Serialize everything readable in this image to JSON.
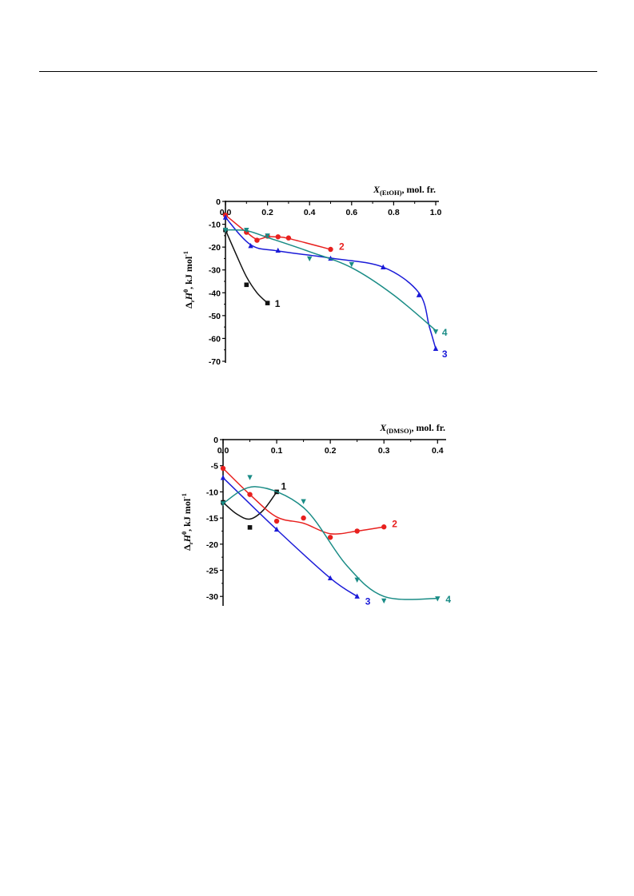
{
  "charts": [
    {
      "type": "scatter",
      "title": "",
      "xlabel": {
        "main": "X",
        "sub": "(EtOH)",
        "rest": ", mol. fr."
      },
      "ylabel": {
        "delta": "Δ",
        "r": "r",
        "H": "H",
        "sup0": "0",
        "unit": ", kJ mol",
        "sup": "-1"
      },
      "xlim": [
        0,
        1.0
      ],
      "ylim": [
        -70,
        0
      ],
      "xticks": [
        "0.0",
        "0.2",
        "0.4",
        "0.6",
        "0.8",
        "1.0"
      ],
      "xtick_values": [
        0,
        0.2,
        0.4,
        0.6,
        0.8,
        1.0
      ],
      "yticks": [
        "0",
        "-10",
        "-20",
        "-30",
        "-40",
        "-50",
        "-60",
        "-70"
      ],
      "ytick_values": [
        0,
        -10,
        -20,
        -30,
        -40,
        -50,
        -60,
        -70
      ],
      "series": [
        {
          "name": "1",
          "color": "#111111",
          "marker": "square",
          "points": [
            [
              0.0,
              -12.5
            ],
            [
              0.1,
              -36.5
            ],
            [
              0.2,
              -44.5
            ]
          ],
          "curve": [
            [
              0.0,
              -12.5
            ],
            [
              0.05,
              -23
            ],
            [
              0.1,
              -33
            ],
            [
              0.15,
              -40
            ],
            [
              0.2,
              -44.5
            ]
          ],
          "label_at": [
            0.235,
            -44.5
          ]
        },
        {
          "name": "2",
          "color": "#e8201e",
          "marker": "circle",
          "points": [
            [
              0.0,
              -6
            ],
            [
              0.1,
              -13.5
            ],
            [
              0.15,
              -17
            ],
            [
              0.2,
              -15.2
            ],
            [
              0.25,
              -15.5
            ],
            [
              0.3,
              -16
            ],
            [
              0.5,
              -21
            ]
          ],
          "curve": [
            [
              0.0,
              -6
            ],
            [
              0.1,
              -13.5
            ],
            [
              0.15,
              -16.5
            ],
            [
              0.2,
              -15.5
            ],
            [
              0.25,
              -15.6
            ],
            [
              0.3,
              -16.2
            ],
            [
              0.5,
              -21
            ]
          ],
          "label_at": [
            0.54,
            -19.5
          ]
        },
        {
          "name": "3",
          "color": "#1b1bd8",
          "marker": "triangle-up",
          "points": [
            [
              0.0,
              -7
            ],
            [
              0.12,
              -19.5
            ],
            [
              0.25,
              -21.5
            ],
            [
              0.5,
              -25
            ],
            [
              0.75,
              -28.8
            ],
            [
              0.92,
              -41
            ],
            [
              1.0,
              -64.5
            ]
          ],
          "curve": [
            [
              0.0,
              -7
            ],
            [
              0.12,
              -19
            ],
            [
              0.25,
              -21.7
            ],
            [
              0.5,
              -24.8
            ],
            [
              0.75,
              -28.8
            ],
            [
              0.92,
              -40
            ],
            [
              0.97,
              -55
            ],
            [
              1.0,
              -64.5
            ]
          ],
          "label_at": [
            1.03,
            -66.5
          ]
        },
        {
          "name": "4",
          "color": "#1a8c86",
          "marker": "triangle-down",
          "points": [
            [
              0.0,
              -12.5
            ],
            [
              0.1,
              -12.5
            ],
            [
              0.2,
              -15
            ],
            [
              0.4,
              -25
            ],
            [
              0.6,
              -27.5
            ],
            [
              1.0,
              -57
            ]
          ],
          "curve": [
            [
              0.0,
              -12.5
            ],
            [
              0.1,
              -12.8
            ],
            [
              0.2,
              -15.8
            ],
            [
              0.4,
              -22
            ],
            [
              0.6,
              -29
            ],
            [
              0.8,
              -41
            ],
            [
              1.0,
              -56.5
            ]
          ],
          "label_at": [
            1.03,
            -57
          ]
        }
      ]
    },
    {
      "type": "scatter",
      "title": "",
      "xlabel": {
        "main": "X",
        "sub": "(DMSO)",
        "rest": ", mol. fr."
      },
      "ylabel": {
        "delta": "Δ",
        "r": "r",
        "H": "H",
        "sup0": "0",
        "unit": ", kJ mol",
        "sup": "-1"
      },
      "xlim": [
        0,
        0.41
      ],
      "ylim": [
        -31.5,
        0
      ],
      "xticks": [
        "0.0",
        "0.1",
        "0.2",
        "0.3",
        "0.4"
      ],
      "xtick_values": [
        0,
        0.1,
        0.2,
        0.3,
        0.4
      ],
      "yticks": [
        "0",
        "-5",
        "-10",
        "-15",
        "-20",
        "-25",
        "-30"
      ],
      "ytick_values": [
        0,
        -5,
        -10,
        -15,
        -20,
        -25,
        -30
      ],
      "series": [
        {
          "name": "1",
          "color": "#111111",
          "marker": "square",
          "points": [
            [
              0.0,
              -12
            ],
            [
              0.05,
              -16.8
            ],
            [
              0.1,
              -10
            ]
          ],
          "curve": [
            [
              0.0,
              -12
            ],
            [
              0.025,
              -14.2
            ],
            [
              0.05,
              -15.2
            ],
            [
              0.075,
              -13.5
            ],
            [
              0.1,
              -10
            ]
          ],
          "label_at": [
            0.108,
            -8.8
          ]
        },
        {
          "name": "2",
          "color": "#e8201e",
          "marker": "circle",
          "points": [
            [
              0.0,
              -5.5
            ],
            [
              0.05,
              -10.5
            ],
            [
              0.1,
              -15.6
            ],
            [
              0.15,
              -15
            ],
            [
              0.2,
              -18.7
            ],
            [
              0.25,
              -17.5
            ],
            [
              0.3,
              -16.7
            ]
          ],
          "curve": [
            [
              0.0,
              -5.5
            ],
            [
              0.05,
              -10.5
            ],
            [
              0.1,
              -14.8
            ],
            [
              0.15,
              -16
            ],
            [
              0.2,
              -18
            ],
            [
              0.25,
              -17.5
            ],
            [
              0.3,
              -16.7
            ]
          ],
          "label_at": [
            0.315,
            -16
          ]
        },
        {
          "name": "3",
          "color": "#1b1bd8",
          "marker": "triangle-up",
          "points": [
            [
              0.0,
              -7.3
            ],
            [
              0.1,
              -17.2
            ],
            [
              0.2,
              -26.5
            ],
            [
              0.25,
              -30
            ]
          ],
          "curve": [
            [
              0.0,
              -7.3
            ],
            [
              0.1,
              -17.2
            ],
            [
              0.2,
              -26.5
            ],
            [
              0.25,
              -30
            ]
          ],
          "label_at": [
            0.265,
            -30.8
          ]
        },
        {
          "name": "4",
          "color": "#1a8c86",
          "marker": "triangle-down",
          "points": [
            [
              0.0,
              -12.2
            ],
            [
              0.05,
              -7.2
            ],
            [
              0.15,
              -11.8
            ],
            [
              0.25,
              -26.8
            ],
            [
              0.3,
              -30.8
            ],
            [
              0.4,
              -30.4
            ]
          ],
          "curve": [
            [
              0.0,
              -12.2
            ],
            [
              0.06,
              -9
            ],
            [
              0.15,
              -13
            ],
            [
              0.23,
              -24
            ],
            [
              0.3,
              -30
            ],
            [
              0.4,
              -30.4
            ]
          ],
          "label_at": [
            0.415,
            -30.4
          ]
        }
      ]
    }
  ]
}
